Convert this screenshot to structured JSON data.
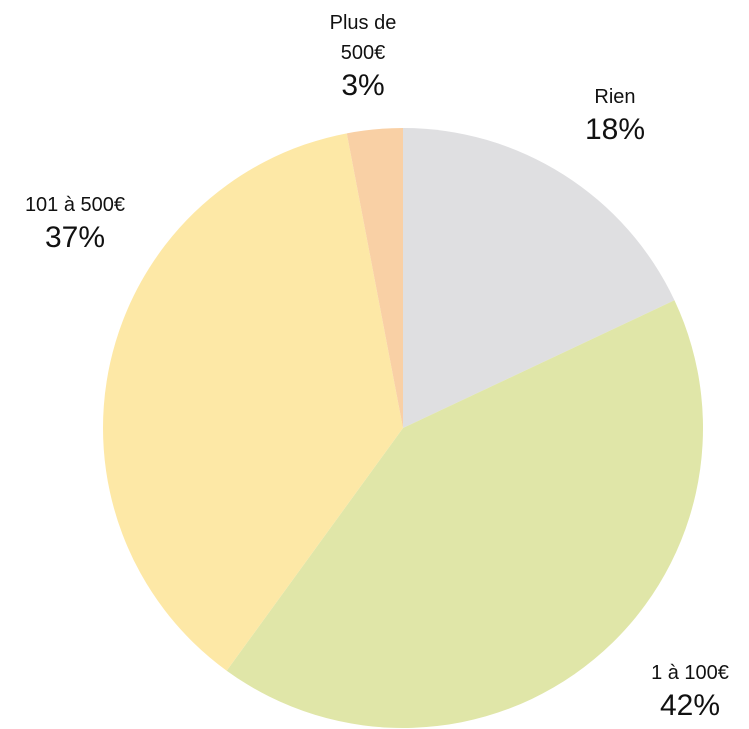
{
  "chart_data": {
    "type": "pie",
    "categories": [
      "Rien",
      "1 à 100€",
      "101 à 500€",
      "Plus de 500€"
    ],
    "values": [
      18,
      42,
      37,
      3
    ],
    "value_labels": [
      "18%",
      "42%",
      "37%",
      "3%"
    ],
    "colors": [
      "#dfdfe1",
      "#e0e6a8",
      "#fde8a6",
      "#f9d0a5"
    ]
  }
}
